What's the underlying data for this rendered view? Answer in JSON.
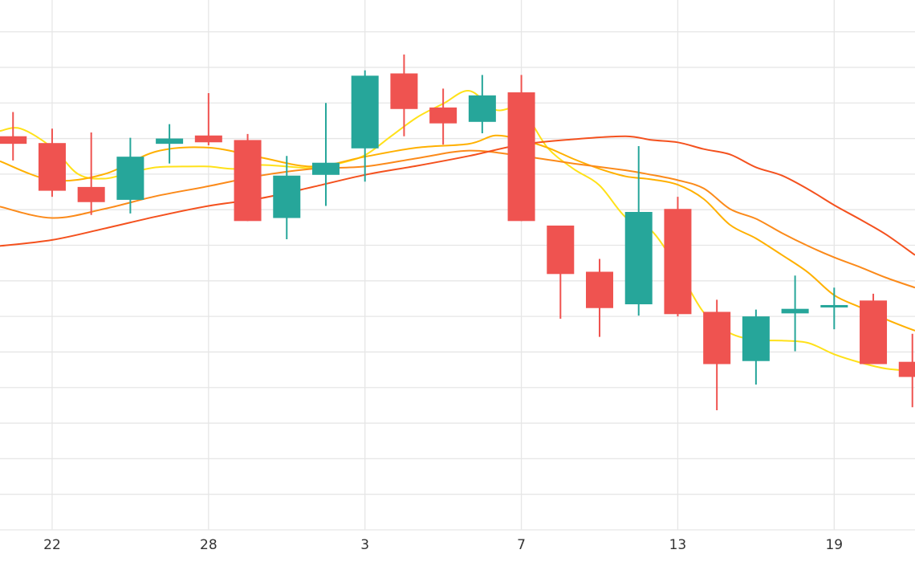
{
  "chart_data": {
    "type": "candlestick",
    "xlabel": "",
    "ylabel": "",
    "grid": true,
    "legend": "none",
    "x_ticks": [
      {
        "day": 22,
        "label": "22"
      },
      {
        "day": 28,
        "label": "28"
      },
      {
        "day": 34,
        "label": "3"
      },
      {
        "day": 40,
        "label": "7"
      },
      {
        "day": 46,
        "label": "13"
      },
      {
        "day": 52,
        "label": "19"
      }
    ],
    "xlim": [
      20,
      55.1
    ],
    "ylim": [
      0,
      700
    ],
    "y_grid_step": 47,
    "colors": {
      "up": "#26a69a",
      "down": "#ef5350",
      "grid": "#e6e6e6",
      "ma_5": "#ffe119",
      "ma_10": "#ffb000",
      "ma_20": "#fb8a1a",
      "ma_30": "#f4511e"
    },
    "candles": [
      {
        "day": 20.5,
        "open": 520,
        "high": 552,
        "low": 488,
        "close": 510
      },
      {
        "day": 22.0,
        "open": 511,
        "high": 530,
        "low": 440,
        "close": 448
      },
      {
        "day": 23.5,
        "open": 453,
        "high": 525,
        "low": 416,
        "close": 433
      },
      {
        "day": 25.0,
        "open": 436,
        "high": 518,
        "low": 418,
        "close": 493
      },
      {
        "day": 26.5,
        "open": 510,
        "high": 536,
        "low": 484,
        "close": 517
      },
      {
        "day": 28.0,
        "open": 521,
        "high": 577,
        "low": 508,
        "close": 512
      },
      {
        "day": 29.5,
        "open": 515,
        "high": 523,
        "low": 408,
        "close": 408
      },
      {
        "day": 31.0,
        "open": 412,
        "high": 494,
        "low": 384,
        "close": 468
      },
      {
        "day": 32.5,
        "open": 469,
        "high": 564,
        "low": 428,
        "close": 485
      },
      {
        "day": 34.0,
        "open": 504,
        "high": 607,
        "low": 460,
        "close": 600
      },
      {
        "day": 35.5,
        "open": 603,
        "high": 628,
        "low": 520,
        "close": 556
      },
      {
        "day": 37.0,
        "open": 558,
        "high": 583,
        "low": 509,
        "close": 537
      },
      {
        "day": 38.5,
        "open": 539,
        "high": 601,
        "low": 524,
        "close": 574
      },
      {
        "day": 40.0,
        "open": 578,
        "high": 601,
        "low": 408,
        "close": 408
      },
      {
        "day": 41.5,
        "open": 402,
        "high": 402,
        "low": 279,
        "close": 338
      },
      {
        "day": 43.0,
        "open": 341,
        "high": 358,
        "low": 255,
        "close": 293
      },
      {
        "day": 44.5,
        "open": 298,
        "high": 507,
        "low": 283,
        "close": 420
      },
      {
        "day": 46.0,
        "open": 424,
        "high": 440,
        "low": 282,
        "close": 285
      },
      {
        "day": 47.5,
        "open": 288,
        "high": 304,
        "low": 158,
        "close": 219
      },
      {
        "day": 49.0,
        "open": 223,
        "high": 291,
        "low": 192,
        "close": 282
      },
      {
        "day": 50.5,
        "open": 286,
        "high": 336,
        "low": 236,
        "close": 292
      },
      {
        "day": 52.0,
        "open": 297,
        "high": 320,
        "low": 265,
        "close": 297
      },
      {
        "day": 53.5,
        "open": 303,
        "high": 312,
        "low": 219,
        "close": 219
      },
      {
        "day": 55.0,
        "open": 222,
        "high": 259,
        "low": 162,
        "close": 202
      }
    ],
    "series": [
      {
        "key": "ma_5",
        "color": "#ffe119",
        "points": [
          [
            20,
            527
          ],
          [
            20.8,
            530
          ],
          [
            22,
            505
          ],
          [
            23,
            470
          ],
          [
            24,
            464
          ],
          [
            25,
            472
          ],
          [
            26,
            479
          ],
          [
            27,
            480
          ],
          [
            28,
            480
          ],
          [
            29,
            477
          ],
          [
            30,
            482
          ],
          [
            31,
            480
          ],
          [
            32,
            478
          ],
          [
            33,
            484
          ],
          [
            34,
            495
          ],
          [
            35,
            520
          ],
          [
            36,
            545
          ],
          [
            37,
            563
          ],
          [
            38,
            580
          ],
          [
            39,
            555
          ],
          [
            40,
            555
          ],
          [
            41,
            505
          ],
          [
            42,
            477
          ],
          [
            43,
            455
          ],
          [
            44,
            413
          ],
          [
            45,
            395
          ],
          [
            46,
            345
          ],
          [
            47,
            287
          ],
          [
            48,
            260
          ],
          [
            49,
            251
          ],
          [
            50,
            250
          ],
          [
            51,
            247
          ],
          [
            52,
            232
          ],
          [
            53,
            221
          ],
          [
            54,
            213
          ],
          [
            55.1,
            210
          ]
        ]
      },
      {
        "key": "ma_10",
        "color": "#ffb000",
        "points": [
          [
            20,
            487
          ],
          [
            22,
            462
          ],
          [
            24,
            470
          ],
          [
            26,
            500
          ],
          [
            28,
            505
          ],
          [
            30,
            492
          ],
          [
            32,
            480
          ],
          [
            34,
            493
          ],
          [
            36,
            505
          ],
          [
            38,
            510
          ],
          [
            39,
            521
          ],
          [
            40,
            515
          ],
          [
            41,
            505
          ],
          [
            42,
            490
          ],
          [
            43,
            477
          ],
          [
            44,
            467
          ],
          [
            45,
            463
          ],
          [
            46,
            456
          ],
          [
            47,
            437
          ],
          [
            48,
            403
          ],
          [
            49,
            385
          ],
          [
            50,
            363
          ],
          [
            51,
            340
          ],
          [
            52,
            310
          ],
          [
            53,
            294
          ],
          [
            54,
            278
          ],
          [
            55.1,
            263
          ]
        ]
      },
      {
        "key": "ma_20",
        "color": "#fb8a1a",
        "points": [
          [
            20,
            427
          ],
          [
            22,
            412
          ],
          [
            24,
            424
          ],
          [
            26,
            441
          ],
          [
            28,
            454
          ],
          [
            30,
            468
          ],
          [
            32,
            477
          ],
          [
            34,
            480
          ],
          [
            36,
            491
          ],
          [
            38,
            501
          ],
          [
            40,
            494
          ],
          [
            42,
            484
          ],
          [
            44,
            475
          ],
          [
            45,
            469
          ],
          [
            46,
            462
          ],
          [
            47,
            451
          ],
          [
            48,
            424
          ],
          [
            49,
            411
          ],
          [
            50,
            392
          ],
          [
            51,
            375
          ],
          [
            52,
            360
          ],
          [
            53,
            347
          ],
          [
            54,
            333
          ],
          [
            55.1,
            320
          ]
        ]
      },
      {
        "key": "ma_30",
        "color": "#f4511e",
        "points": [
          [
            20,
            375
          ],
          [
            22,
            383
          ],
          [
            24,
            398
          ],
          [
            26,
            414
          ],
          [
            28,
            428
          ],
          [
            30,
            438
          ],
          [
            32,
            453
          ],
          [
            34,
            469
          ],
          [
            36,
            481
          ],
          [
            38,
            494
          ],
          [
            40,
            509
          ],
          [
            42,
            516
          ],
          [
            44,
            520
          ],
          [
            45,
            515
          ],
          [
            46,
            512
          ],
          [
            47,
            503
          ],
          [
            48,
            496
          ],
          [
            49,
            479
          ],
          [
            50,
            468
          ],
          [
            51,
            450
          ],
          [
            52,
            429
          ],
          [
            53,
            410
          ],
          [
            54,
            390
          ],
          [
            55.1,
            363
          ]
        ]
      }
    ]
  }
}
